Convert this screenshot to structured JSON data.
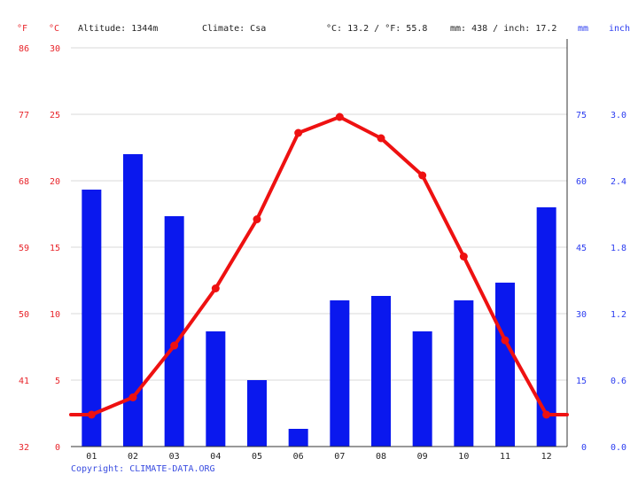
{
  "header": {
    "altitude_label": "Altitude: 1344m",
    "climate_label": "Climate: Csa",
    "temp_summary": "°C: 13.2 / °F: 55.8",
    "precip_summary": "mm: 438 / inch: 17.2"
  },
  "axis_units": {
    "left_f": "°F",
    "left_c": "°C",
    "right_mm": "mm",
    "right_inch": "inch"
  },
  "copyright": "Copyright: CLIMATE-DATA.ORG",
  "colors": {
    "temperature": "#ee1111",
    "precipitation": "#0a18ee",
    "axis_temp": "#e8252b",
    "axis_precip": "#2b3cf0",
    "grid": "#d8d8d8"
  },
  "chart_data": {
    "type": "bar",
    "categories": [
      "01",
      "02",
      "03",
      "04",
      "05",
      "06",
      "07",
      "08",
      "09",
      "10",
      "11",
      "12"
    ],
    "series": [
      {
        "type": "bar",
        "axis": "precipitation_mm",
        "values": [
          58,
          66,
          52,
          26,
          15,
          4,
          33,
          34,
          26,
          33,
          37,
          54
        ]
      },
      {
        "type": "line",
        "axis": "temperature_c",
        "values": [
          2.4,
          3.7,
          7.6,
          11.9,
          17.1,
          23.6,
          24.8,
          23.2,
          20.4,
          14.3,
          8.0,
          2.4
        ]
      }
    ],
    "axes": {
      "temperature_c": {
        "min": 0,
        "max": 30,
        "ticks": [
          "0",
          "5",
          "10",
          "15",
          "20",
          "25",
          "30"
        ]
      },
      "temperature_f": {
        "ticks": [
          "32",
          "41",
          "50",
          "59",
          "68",
          "77",
          "86"
        ]
      },
      "precipitation_mm": {
        "min": 0,
        "max": 90,
        "ticks": [
          "0",
          "15",
          "30",
          "45",
          "60",
          "75"
        ]
      },
      "precipitation_inch": {
        "ticks": [
          "0.0",
          "0.6",
          "1.2",
          "1.8",
          "2.4",
          "3.0"
        ]
      }
    },
    "grid": true
  }
}
